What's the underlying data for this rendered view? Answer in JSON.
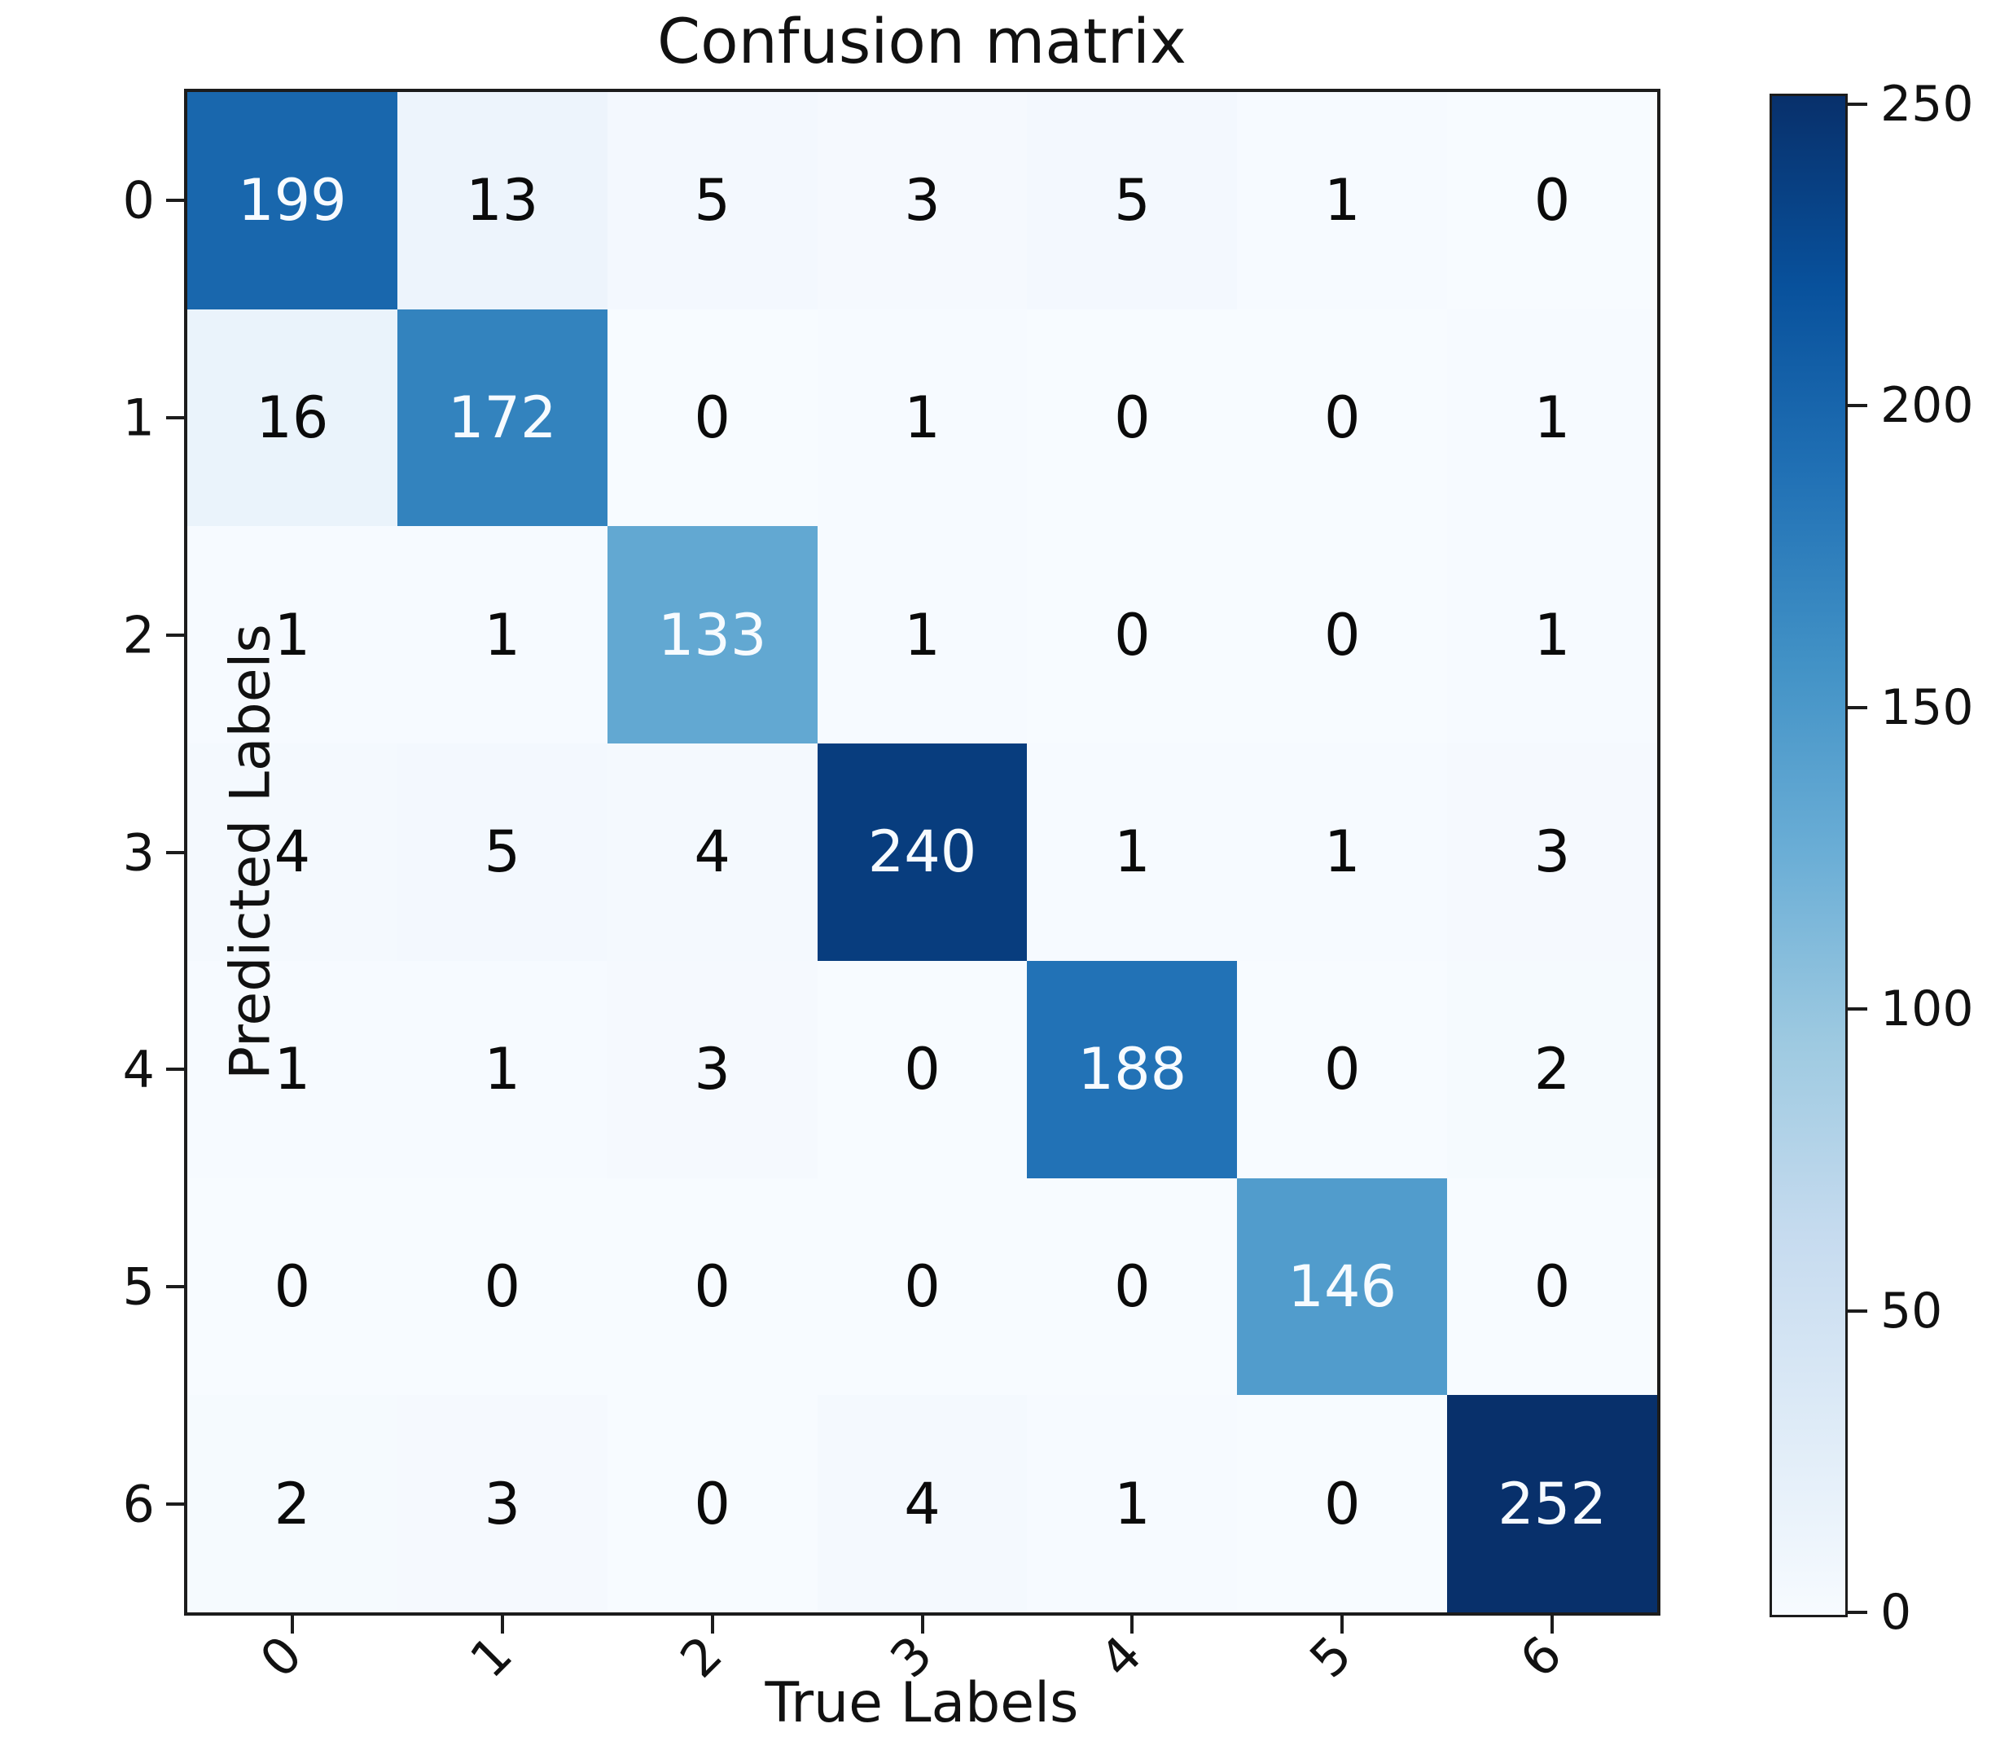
{
  "chart_data": {
    "type": "heatmap",
    "title": "Confusion matrix",
    "xlabel": "True Labels",
    "ylabel": "Predicted Labels",
    "x_tick_labels": [
      "0",
      "1",
      "2",
      "3",
      "4",
      "5",
      "6"
    ],
    "y_tick_labels": [
      "0",
      "1",
      "2",
      "3",
      "4",
      "5",
      "6"
    ],
    "matrix": [
      [
        199,
        13,
        5,
        3,
        5,
        1,
        0
      ],
      [
        16,
        172,
        0,
        1,
        0,
        0,
        1
      ],
      [
        1,
        1,
        133,
        1,
        0,
        0,
        1
      ],
      [
        4,
        5,
        4,
        240,
        1,
        1,
        3
      ],
      [
        1,
        1,
        3,
        0,
        188,
        0,
        2
      ],
      [
        0,
        0,
        0,
        0,
        0,
        146,
        0
      ],
      [
        2,
        3,
        0,
        4,
        1,
        0,
        252
      ]
    ],
    "x_tick_rotation_deg": -45,
    "grid": false,
    "colorbar": {
      "position": "right",
      "ticks": [
        0,
        50,
        100,
        150,
        200,
        250
      ],
      "vmin": 0,
      "vmax": 252
    },
    "colormap": {
      "name": "Blues",
      "anchors": [
        "#f7fbff",
        "#deebf7",
        "#c6dbef",
        "#9ecae1",
        "#6baed6",
        "#4292c6",
        "#2171b5",
        "#08519c",
        "#08306b"
      ]
    },
    "cell_text_color_dark_cells": "#f7fbff",
    "cell_text_color_light_cells": "#0a0a0a",
    "axis_color": "#1c1c1c"
  }
}
